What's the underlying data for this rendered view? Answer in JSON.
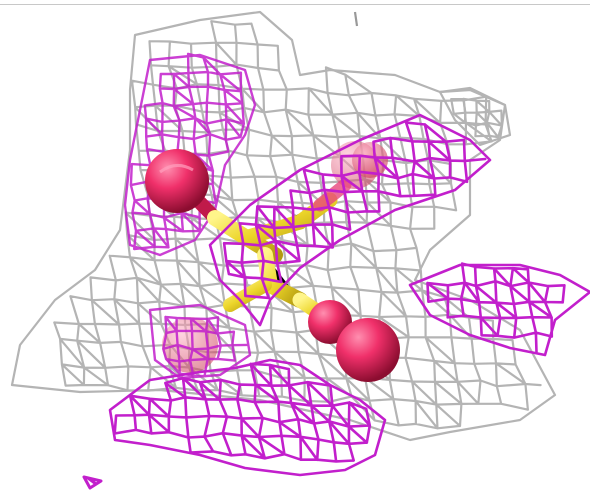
{
  "scene": {
    "description_colors": {
      "background": "#ffffff",
      "mesh_grey": "#b4b4b4",
      "mesh_magenta": "#c21fcc",
      "atom_red": "#e8245a",
      "bond_yellow": "#ecd52a"
    },
    "icons": [
      "molecular-viewport"
    ]
  }
}
